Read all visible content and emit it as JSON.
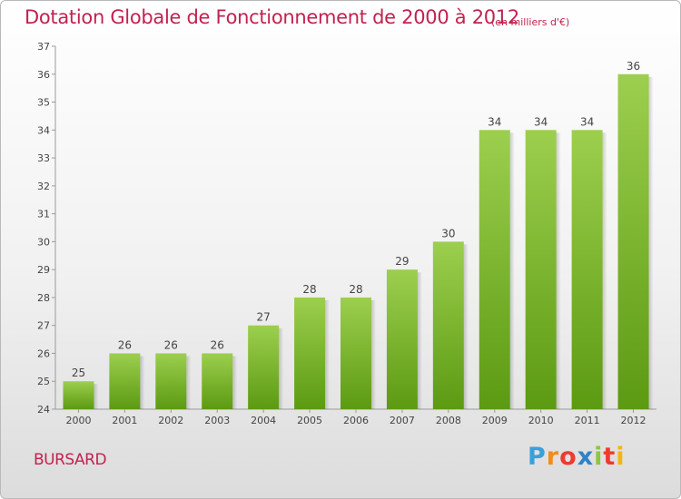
{
  "title": "Dotation Globale de Fonctionnement de 2000 à 2012",
  "subtitle": "(en milliers d'€)",
  "location": "BURSARD",
  "brand": {
    "letters": [
      "P",
      "r",
      "o",
      "x",
      "i",
      "t",
      "i"
    ],
    "colors": [
      "#3aa0dc",
      "#f28c1a",
      "#ee3b2f",
      "#2f82c8",
      "#8dc63f",
      "#ee3b2f",
      "#f5b50f"
    ]
  },
  "colors": {
    "title": "#c2224f",
    "bar_top": "#9ccf4e",
    "bar_bottom": "#5c9a12"
  },
  "chart_data": {
    "type": "bar",
    "categories": [
      "2000",
      "2001",
      "2002",
      "2003",
      "2004",
      "2005",
      "2006",
      "2007",
      "2008",
      "2009",
      "2010",
      "2011",
      "2012"
    ],
    "values": [
      25,
      26,
      26,
      26,
      27,
      28,
      28,
      29,
      30,
      34,
      34,
      34,
      36
    ],
    "ylim": [
      24,
      37
    ],
    "yticks": [
      24,
      25,
      26,
      27,
      28,
      29,
      30,
      31,
      32,
      33,
      34,
      35,
      36,
      37
    ],
    "grid": false
  }
}
